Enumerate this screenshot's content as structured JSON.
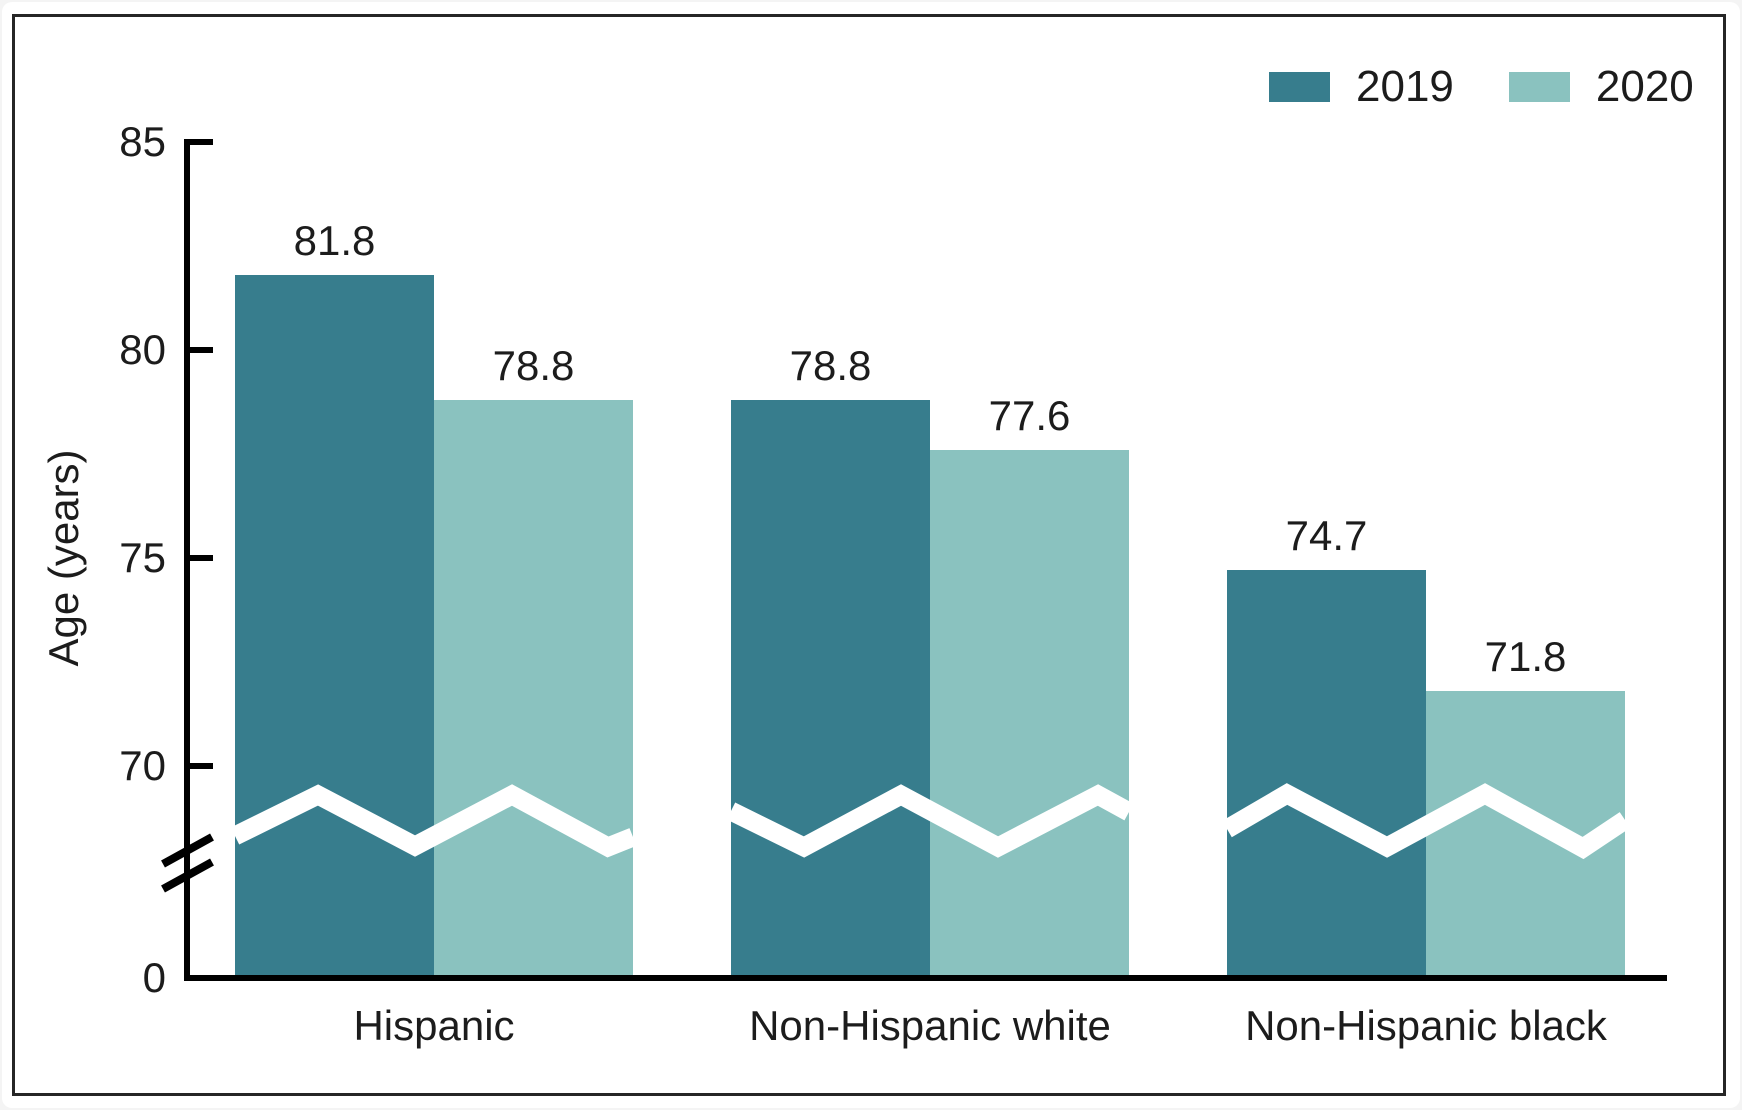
{
  "figure": {
    "background": "#ffffff",
    "frame_border_color": "#262626",
    "axis_color": "#000000",
    "break_marker_color": "#ffffff"
  },
  "legend": {
    "position": "top-right",
    "items": [
      {
        "label": "2019",
        "color": "#377d8d"
      },
      {
        "label": "2020",
        "color": "#8ac2bf"
      }
    ]
  },
  "chart_data": {
    "type": "bar",
    "categories": [
      "Hispanic",
      "Non-Hispanic white",
      "Non-Hispanic black"
    ],
    "series": [
      {
        "name": "2019",
        "color": "#377d8d",
        "values": [
          81.8,
          78.8,
          74.7
        ]
      },
      {
        "name": "2020",
        "color": "#8ac2bf",
        "values": [
          78.8,
          77.6,
          71.8
        ]
      }
    ],
    "value_labels": true,
    "ylabel": "Age (years)",
    "y_ticks": [
      0,
      70,
      75,
      80,
      85
    ],
    "ylim": [
      0,
      85
    ],
    "y_axis_break": true,
    "grid": false,
    "legend_position": "top-right"
  }
}
